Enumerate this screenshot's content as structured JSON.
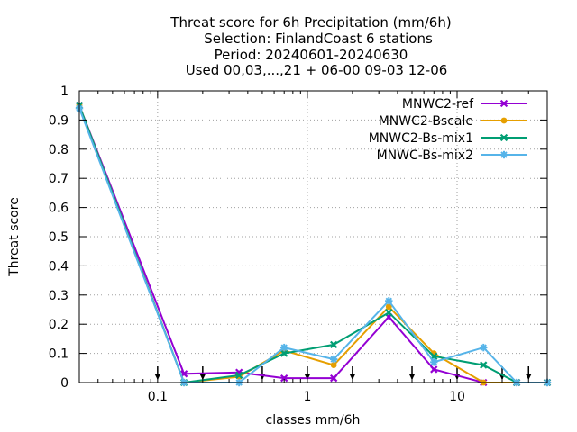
{
  "chart_data": {
    "type": "line",
    "title_lines": [
      "Threat score  for 6h Precipitation (mm/6h)",
      "Selection: FinlandCoast      6 stations",
      "Period: 20240601-20240630",
      "Used 00,03,...,21 + 06-00 09-03 12-06"
    ],
    "xlabel": "classes mm/6h",
    "ylabel": "Threat score",
    "x_scale": "log",
    "xlim": [
      0.03,
      40
    ],
    "ylim": [
      0,
      1
    ],
    "x_ticks": [
      {
        "value": 0.1,
        "label": "0.1"
      },
      {
        "value": 1,
        "label": "1"
      },
      {
        "value": 10,
        "label": "10"
      }
    ],
    "y_ticks": [
      {
        "value": 0,
        "label": "0"
      },
      {
        "value": 0.1,
        "label": "0.1"
      },
      {
        "value": 0.2,
        "label": "0.2"
      },
      {
        "value": 0.3,
        "label": "0.3"
      },
      {
        "value": 0.4,
        "label": "0.4"
      },
      {
        "value": 0.5,
        "label": "0.5"
      },
      {
        "value": 0.6,
        "label": "0.6"
      },
      {
        "value": 0.7,
        "label": "0.7"
      },
      {
        "value": 0.8,
        "label": "0.8"
      },
      {
        "value": 0.9,
        "label": "0.9"
      },
      {
        "value": 1,
        "label": "1"
      }
    ],
    "grid": true,
    "legend_position": "top-right",
    "threshold_arrows": [
      0.1,
      0.2,
      0.5,
      1,
      2,
      5,
      10,
      20,
      30
    ],
    "x": [
      0.03,
      0.15,
      0.35,
      0.7,
      1.5,
      3.5,
      7,
      15,
      25,
      40
    ],
    "series": [
      {
        "name": "MNWC2-ref",
        "color": "#9400d3",
        "marker": "cross",
        "values": [
          0.95,
          0.03,
          0.035,
          0.015,
          0.015,
          0.225,
          0.045,
          0.0,
          0.0,
          0.0
        ]
      },
      {
        "name": "MNWC2-Bscale",
        "color": "#e69f00",
        "marker": "circle",
        "values": [
          0.95,
          0.0,
          0.02,
          0.11,
          0.06,
          0.26,
          0.1,
          0.0,
          0.0,
          0.0
        ]
      },
      {
        "name": "MNWC2-Bs-mix1",
        "color": "#009e73",
        "marker": "cross",
        "values": [
          0.95,
          0.0,
          0.025,
          0.1,
          0.13,
          0.24,
          0.09,
          0.06,
          0.0,
          0.0
        ]
      },
      {
        "name": "MNWC-Bs-mix2",
        "color": "#56b4e9",
        "marker": "star",
        "values": [
          0.94,
          0.0,
          0.0,
          0.12,
          0.08,
          0.28,
          0.07,
          0.12,
          0.0,
          0.0
        ]
      }
    ]
  }
}
